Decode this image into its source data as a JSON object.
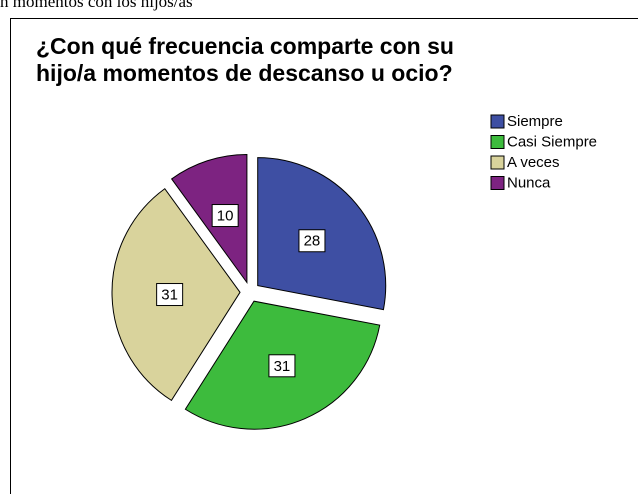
{
  "caption": "n momentos con los hijos/as",
  "chart_data": {
    "type": "pie",
    "title": "¿Con qué frecuencia comparte con su hijo/a momentos de descanso u ocio?",
    "categories": [
      "Siempre",
      "Casi Siempre",
      "A veces",
      "Nunca"
    ],
    "values": [
      28,
      31,
      31,
      10
    ],
    "colors": [
      "#3e4fa3",
      "#3dbb3d",
      "#d9d39c",
      "#7d2381"
    ],
    "legend": "right"
  }
}
